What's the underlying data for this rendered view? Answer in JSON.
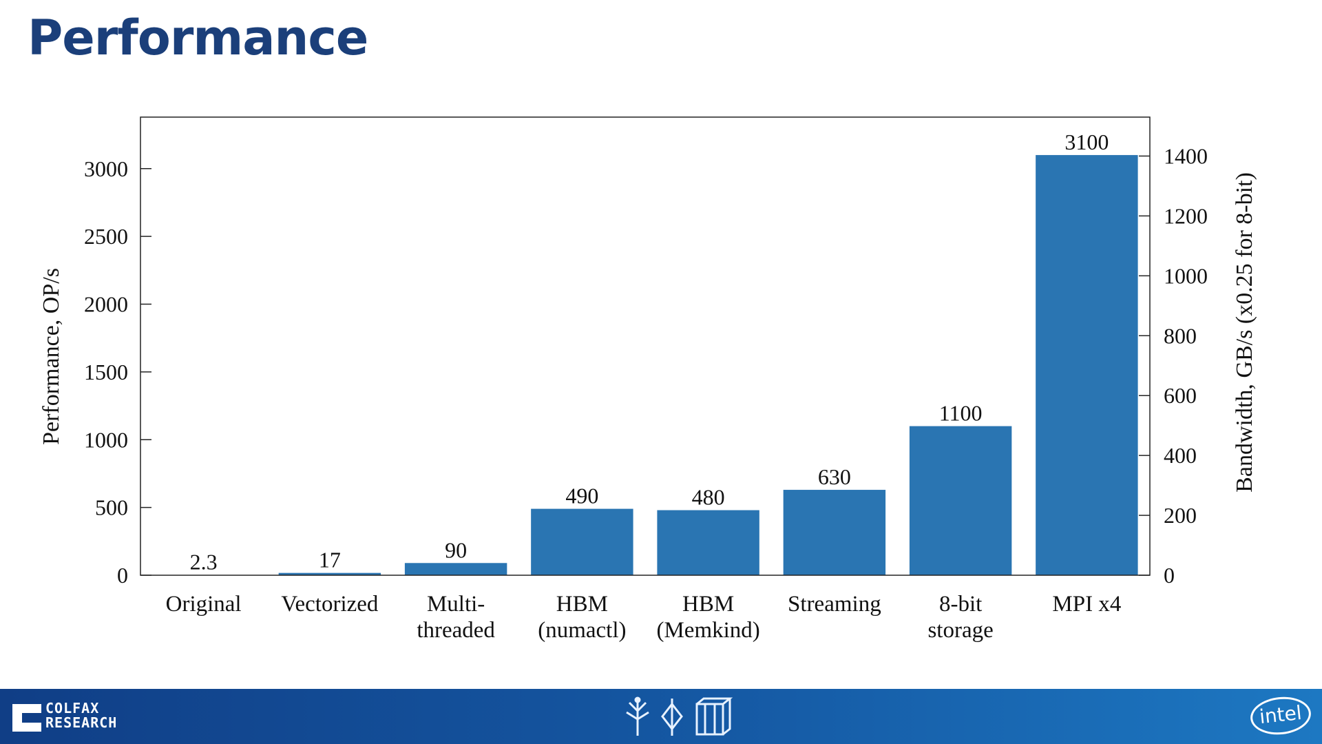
{
  "slide": {
    "title": "Performance"
  },
  "chart_data": {
    "type": "bar",
    "categories": [
      [
        "Original"
      ],
      [
        "Vectorized"
      ],
      [
        "Multi-",
        "threaded"
      ],
      [
        "HBM",
        "(numactl)"
      ],
      [
        "HBM",
        "(Memkind)"
      ],
      [
        "Streaming"
      ],
      [
        "8-bit",
        "storage"
      ],
      [
        "MPI x4"
      ]
    ],
    "values": [
      2.3,
      17,
      90,
      490,
      480,
      630,
      1100,
      3100
    ],
    "data_labels": [
      "2.3",
      "17",
      "90",
      "490",
      "480",
      "630",
      "1100",
      "3100"
    ],
    "ylabel": "Performance, OP/s",
    "ylim": [
      0,
      3380
    ],
    "yticks": [
      0,
      500,
      1000,
      1500,
      2000,
      2500,
      3000
    ],
    "y2label": "Bandwidth, GB/s (x0.25 for 8-bit)",
    "y2lim": [
      0,
      1530
    ],
    "y2ticks": [
      0,
      200,
      400,
      600,
      800,
      1000,
      1200,
      1400
    ],
    "bar_color": "#2a75b2",
    "grid": false,
    "legend": "none"
  },
  "footer": {
    "logo_line1": "COLFAX",
    "logo_line2": "RESEARCH",
    "intel_logo": "intel",
    "icons": [
      "tree-icon",
      "diamond-icon",
      "cube-icon"
    ],
    "color_start": "#103e86",
    "color_end": "#1d78c2"
  }
}
